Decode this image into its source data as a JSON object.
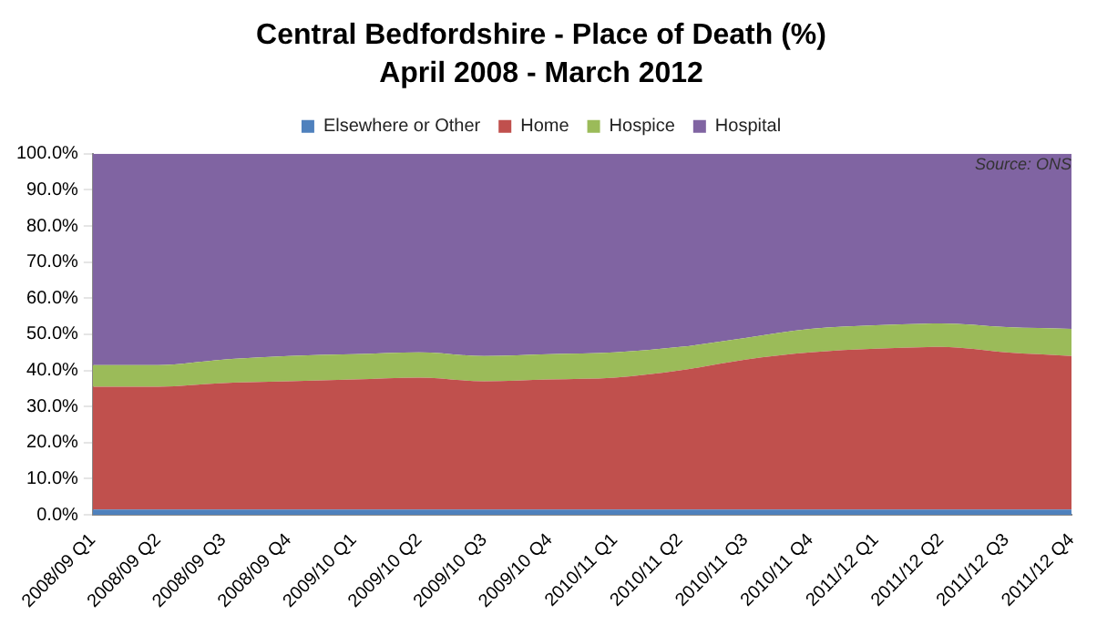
{
  "chart_data": {
    "type": "area",
    "title": "Central Bedfordshire - Place of Death (%)",
    "subtitle": "April 2008 - March 2012",
    "annotations": [
      "Source: ONS"
    ],
    "categories": [
      "2008/09 Q1",
      "2008/09 Q2",
      "2008/09 Q3",
      "2008/09 Q4",
      "2009/10 Q1",
      "2009/10 Q2",
      "2009/10 Q3",
      "2009/10 Q4",
      "2010/11 Q1",
      "2010/11 Q2",
      "2010/11 Q3",
      "2010/11 Q4",
      "2011/12 Q1",
      "2011/12 Q2",
      "2011/12 Q3",
      "2011/12 Q4"
    ],
    "stacked": true,
    "series": [
      {
        "name": "Elsewhere or Other",
        "color": "#4f81bd",
        "values": [
          1.5,
          1.5,
          1.5,
          1.5,
          1.5,
          1.5,
          1.5,
          1.5,
          1.5,
          1.5,
          1.5,
          1.5,
          1.5,
          1.5,
          1.5,
          1.5
        ]
      },
      {
        "name": "Home",
        "color": "#c0504d",
        "values": [
          34,
          34,
          35,
          35.5,
          36,
          36.5,
          35.5,
          36,
          36.5,
          38.5,
          41.5,
          43.5,
          44.5,
          45,
          43.5,
          42.5
        ]
      },
      {
        "name": "Hospice",
        "color": "#9bbb59",
        "values": [
          6,
          6,
          6.5,
          7,
          7,
          7,
          7,
          7,
          7,
          6.5,
          6,
          6.5,
          6.5,
          6.5,
          7,
          7.5
        ]
      },
      {
        "name": "Hospital",
        "color": "#8064a2",
        "values": [
          58.5,
          58.5,
          57,
          56,
          55.5,
          55,
          56,
          55.5,
          55,
          53.5,
          51,
          48.5,
          47.5,
          47,
          48,
          48.5
        ]
      }
    ],
    "ylim": [
      0,
      100
    ],
    "yticks": [
      {
        "value": 0,
        "label": "0.0%"
      },
      {
        "value": 10,
        "label": "10.0%"
      },
      {
        "value": 20,
        "label": "20.0%"
      },
      {
        "value": 30,
        "label": "30.0%"
      },
      {
        "value": 40,
        "label": "40.0%"
      },
      {
        "value": 50,
        "label": "50.0%"
      },
      {
        "value": 60,
        "label": "60.0%"
      },
      {
        "value": 70,
        "label": "70.0%"
      },
      {
        "value": 80,
        "label": "80.0%"
      },
      {
        "value": 90,
        "label": "90.0%"
      },
      {
        "value": 100,
        "label": "100.0%"
      }
    ],
    "grid": false,
    "legend": "top"
  }
}
